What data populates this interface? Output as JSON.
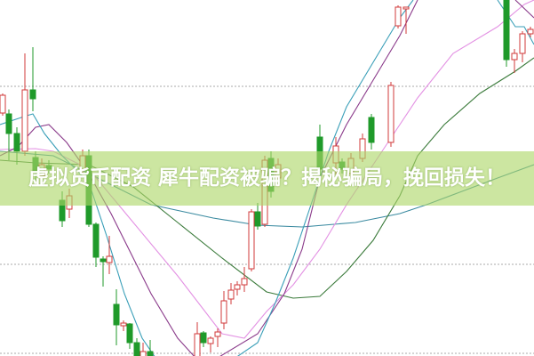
{
  "headline": "虚拟货币配资 犀牛配资被骗？揭秘骗局，挽回损失！",
  "colors": {
    "up_candle": "#d0383a",
    "down_candle": "#1f9a2a",
    "grid": "#a8a8a8",
    "banner": "#acd668",
    "ma_lines": [
      "#3a9fb8",
      "#8a3a8a",
      "#e391e3",
      "#3a7a3a",
      "#3a8aa0"
    ]
  }
}
